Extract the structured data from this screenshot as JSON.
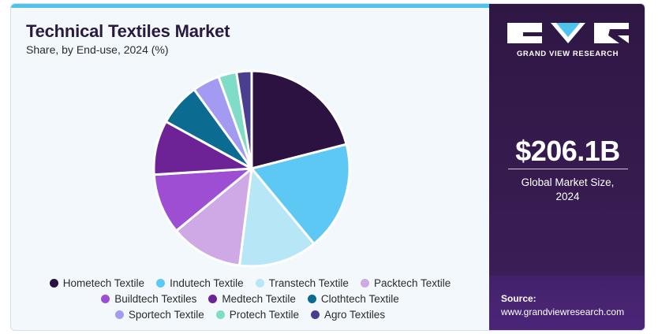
{
  "header": {
    "title": "Technical Textiles Market",
    "subtitle": "Share, by End-use, 2024 (%)"
  },
  "brand": {
    "name": "GRAND VIEW RESEARCH",
    "logo_icon": "gvr-logo-icon"
  },
  "market": {
    "value": "$206.1B",
    "label_line1": "Global Market Size,",
    "label_line2": "2024"
  },
  "source": {
    "label": "Source:",
    "url": "www.grandviewresearch.com"
  },
  "chart_data": {
    "type": "pie",
    "title": "Technical Textiles Market",
    "subtitle": "Share, by End-use, 2024 (%)",
    "legend_position": "bottom",
    "unit": "%",
    "slices": [
      {
        "label": "Hometech Textile",
        "value": 21.0,
        "color": "#2c1240"
      },
      {
        "label": "Indutech Textile",
        "value": 18.0,
        "color": "#5ec8f4"
      },
      {
        "label": "Transtech Textile",
        "value": 13.0,
        "color": "#b7e6f7"
      },
      {
        "label": "Packtech Textile",
        "value": 12.0,
        "color": "#cfa8e6"
      },
      {
        "label": "Buildtech Textiles",
        "value": 10.0,
        "color": "#9e4ed2"
      },
      {
        "label": "Medtech Textile",
        "value": 9.0,
        "color": "#6d2396"
      },
      {
        "label": "Clothtech Textile",
        "value": 7.0,
        "color": "#0b6b90"
      },
      {
        "label": "Sportech Textile",
        "value": 4.5,
        "color": "#a39af2"
      },
      {
        "label": "Protech Textile",
        "value": 3.0,
        "color": "#7fdcc6"
      },
      {
        "label": "Agro Textiles",
        "value": 2.5,
        "color": "#4a3f8e"
      }
    ]
  }
}
